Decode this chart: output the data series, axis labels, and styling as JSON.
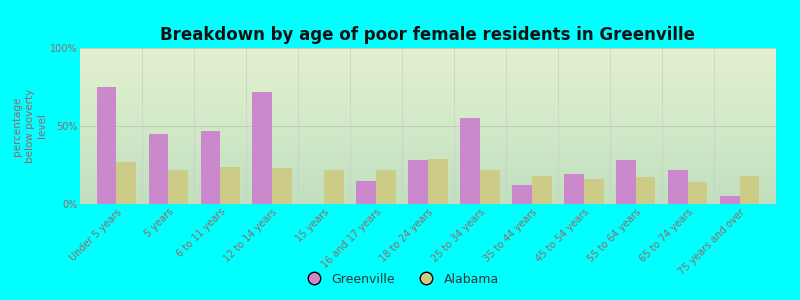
{
  "title": "Breakdown by age of poor female residents in Greenville",
  "ylabel": "percentage\nbelow poverty\nlevel",
  "categories": [
    "Under 5 years",
    "5 years",
    "6 to 11 years",
    "12 to 14 years",
    "15 years",
    "16 and 17 years",
    "18 to 24 years",
    "25 to 34 years",
    "35 to 44 years",
    "45 to 54 years",
    "55 to 64 years",
    "65 to 74 years",
    "75 years and over"
  ],
  "greenville_values": [
    75,
    45,
    47,
    72,
    0,
    15,
    28,
    55,
    12,
    19,
    28,
    22,
    5
  ],
  "alabama_values": [
    27,
    22,
    24,
    23,
    22,
    22,
    29,
    22,
    18,
    16,
    17,
    14,
    18
  ],
  "greenville_color": "#cc88cc",
  "alabama_color": "#cccc88",
  "background_color": "#00ffff",
  "plot_bg_color": "#eef5e0",
  "title_color": "#111111",
  "tick_color": "#996666",
  "label_color": "#333333",
  "ylim": [
    0,
    100
  ],
  "yticks": [
    0,
    50,
    100
  ],
  "ytick_labels": [
    "0%",
    "50%",
    "100%"
  ],
  "bar_width": 0.38,
  "title_fontsize": 12,
  "axis_label_fontsize": 7.5,
  "tick_fontsize": 7,
  "legend_labels": [
    "Greenville",
    "Alabama"
  ],
  "legend_fontsize": 9
}
